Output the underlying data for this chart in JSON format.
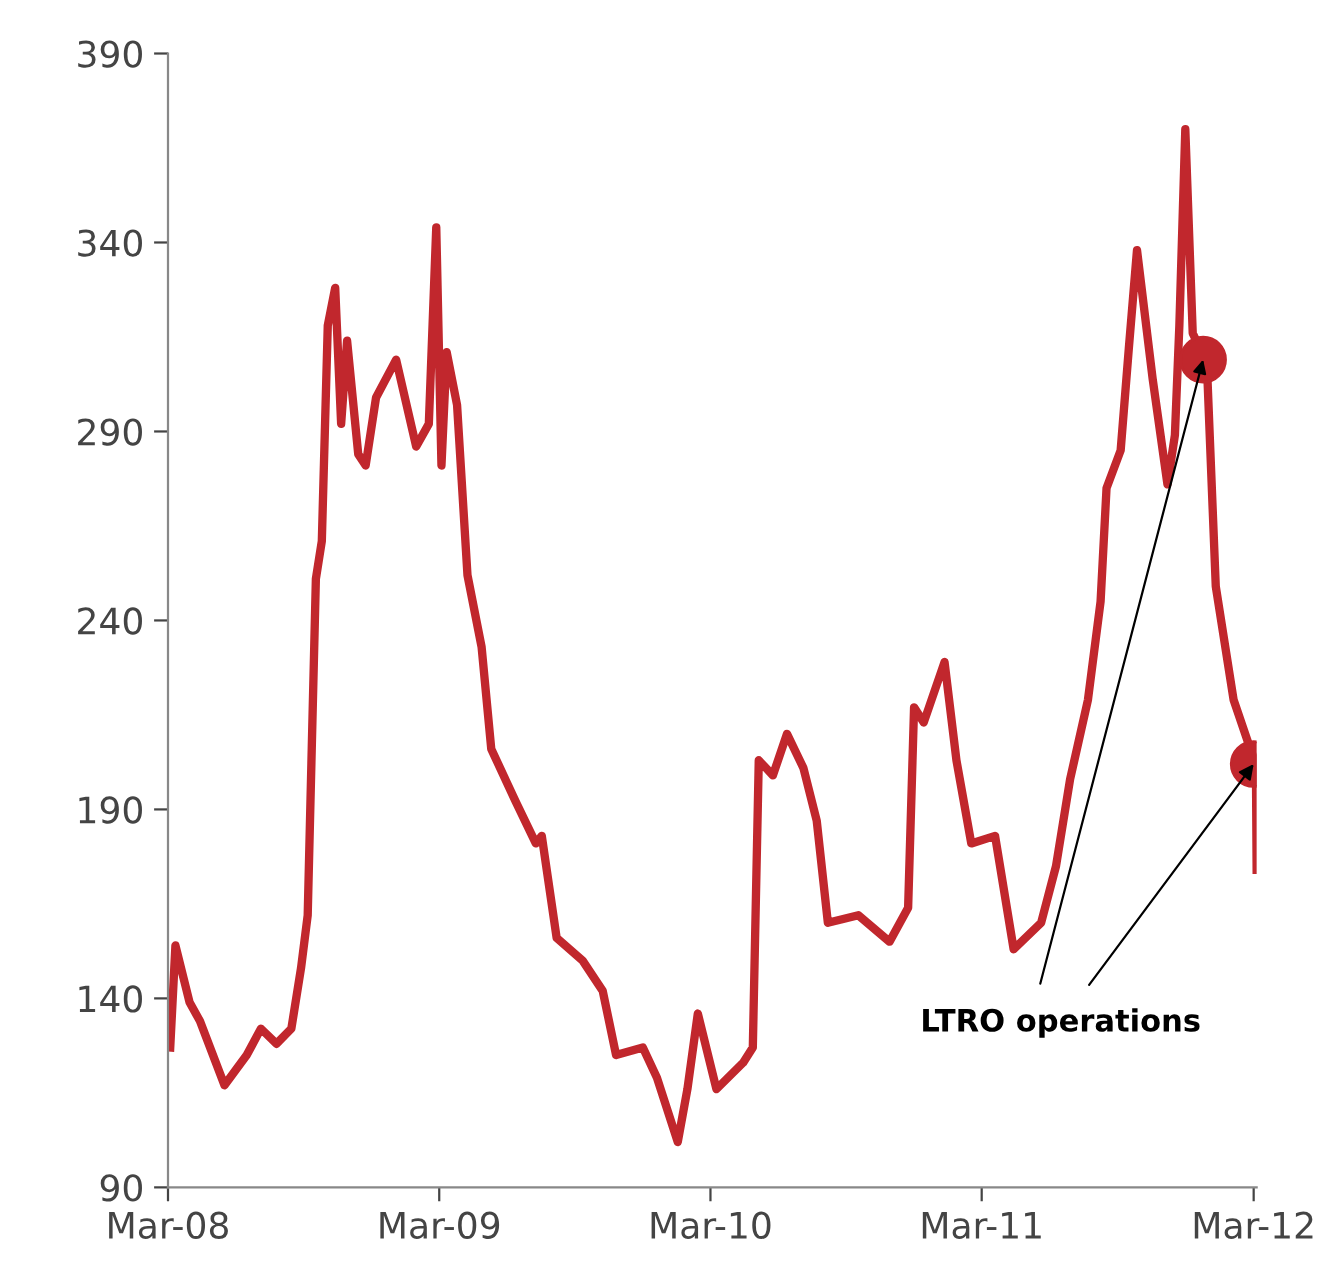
{
  "chart_data": {
    "type": "line",
    "xlim": [
      "2008-03-01",
      "2012-03-05"
    ],
    "ylim": [
      90,
      390
    ],
    "xticks": [
      {
        "value": "2008-03-01",
        "label": "Mar-08"
      },
      {
        "value": "2009-03-01",
        "label": "Mar-09"
      },
      {
        "value": "2010-03-01",
        "label": "Mar-10"
      },
      {
        "value": "2011-03-01",
        "label": "Mar-11"
      },
      {
        "value": "2012-03-01",
        "label": "Mar-12"
      }
    ],
    "yticks": [
      90,
      140,
      190,
      240,
      290,
      340,
      390
    ],
    "grid": false,
    "legend": false,
    "annotations": [
      {
        "text": "LTRO operations",
        "x": "2012-03-01",
        "y": 202
      }
    ],
    "series": [
      {
        "color": "#c1272d",
        "marker": "none",
        "line_style": "solid",
        "x": [
          "2008-03-04",
          "2008-03-11",
          "2008-03-30",
          "2008-04-13",
          "2008-05-16",
          "2008-06-15",
          "2008-07-04",
          "2008-07-25",
          "2008-08-14",
          "2008-08-27",
          "2008-09-05",
          "2008-09-16",
          "2008-09-24",
          "2008-10-02",
          "2008-10-12",
          "2008-10-20",
          "2008-10-28",
          "2008-11-12",
          "2008-11-22",
          "2008-12-06",
          "2009-01-02",
          "2009-01-29",
          "2009-02-15",
          "2009-02-25",
          "2009-03-04",
          "2009-03-11",
          "2009-03-25",
          "2009-04-08",
          "2009-04-27",
          "2009-05-10",
          "2009-06-12",
          "2009-07-09",
          "2009-07-17",
          "2009-08-06",
          "2009-09-10",
          "2009-10-07",
          "2009-10-25",
          "2009-11-30",
          "2009-12-19",
          "2010-01-16",
          "2010-01-29",
          "2010-02-12",
          "2010-03-09",
          "2010-04-14",
          "2010-04-27",
          "2010-05-05",
          "2010-05-24",
          "2010-06-12",
          "2010-07-04",
          "2010-07-22",
          "2010-08-06",
          "2010-09-16",
          "2010-10-28",
          "2010-11-22",
          "2010-11-30",
          "2010-12-13",
          "2011-01-10",
          "2011-01-26",
          "2011-02-15",
          "2011-03-19",
          "2011-04-13",
          "2011-05-20",
          "2011-06-09",
          "2011-06-28",
          "2011-07-22",
          "2011-08-08",
          "2011-08-16",
          "2011-09-04",
          "2011-09-15",
          "2011-09-26",
          "2011-10-17",
          "2011-11-06",
          "2011-11-16",
          "2011-11-22",
          "2011-11-30",
          "2011-12-10",
          "2011-12-29",
          "2012-01-10",
          "2012-02-03",
          "2012-02-22",
          "2012-03-04",
          "2012-03-05"
        ],
        "values": [
          127,
          154,
          139,
          134,
          117,
          125,
          132,
          128,
          132,
          148,
          162,
          251,
          261,
          318,
          328,
          292,
          314,
          284,
          281,
          299,
          309,
          286,
          292,
          344,
          281,
          311,
          297,
          252,
          233,
          206,
          192,
          181,
          183,
          156,
          150,
          142,
          125,
          127,
          119,
          102,
          116,
          136,
          116,
          123,
          127,
          203,
          199,
          210,
          201,
          187,
          160,
          162,
          155,
          164,
          217,
          213,
          229,
          203,
          181,
          183,
          153,
          160,
          175,
          198,
          219,
          245,
          275,
          285,
          312,
          338,
          304,
          276,
          289,
          318,
          370,
          316,
          308,
          249,
          219,
          208,
          202,
          174
        ]
      },
      {
        "type": "scatter",
        "color": "#c1272d",
        "marker": "circle",
        "x": [
          "2011-12-24",
          "2012-03-01"
        ],
        "values": [
          309,
          202
        ]
      }
    ]
  }
}
